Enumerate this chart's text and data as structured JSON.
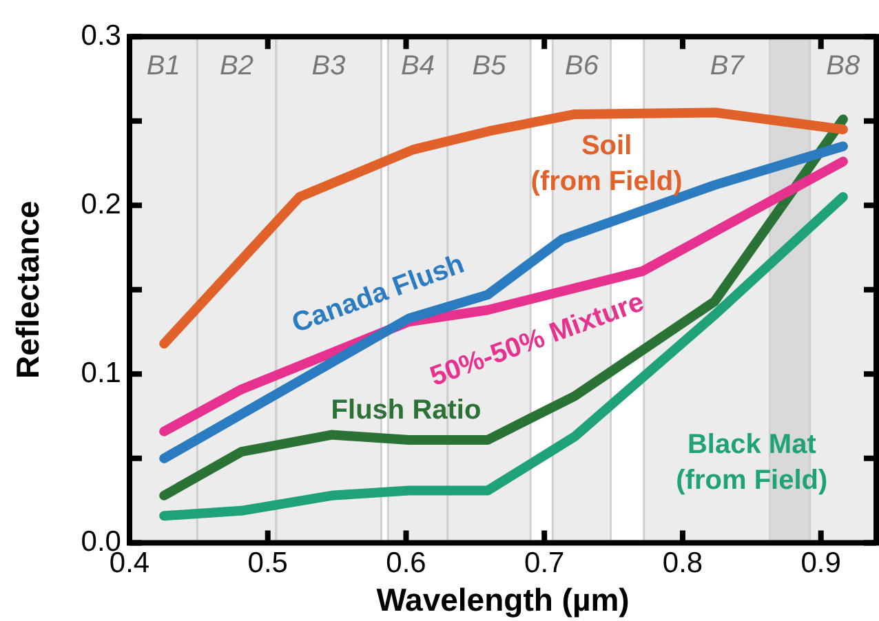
{
  "chart_data": {
    "type": "line",
    "xlabel": "Wavelength (µm)",
    "ylabel": "Reflectance",
    "xlim": [
      0.4,
      0.94
    ],
    "xticks": [
      0.4,
      0.5,
      0.6,
      0.7,
      0.8,
      0.9
    ],
    "ylim": [
      0,
      0.3
    ],
    "yticks": [
      {
        "value": 0,
        "label": "0.0"
      },
      {
        "value": 0.05,
        "label": null
      },
      0.1,
      {
        "value": 0.15,
        "label": null
      },
      0.2,
      {
        "value": 0.25,
        "label": null
      },
      0.3
    ],
    "grid": false,
    "legend": false,
    "marker": "none",
    "line_style": "solid",
    "series": [
      {
        "name": "Soil (from Field)",
        "color": "#e0622a",
        "x": [
          0.425,
          0.523,
          0.605,
          0.66,
          0.722,
          0.824,
          0.916
        ],
        "values": [
          0.118,
          0.205,
          0.233,
          0.244,
          0.254,
          0.255,
          0.245
        ]
      },
      {
        "name": "Canada Flush",
        "color": "#2b7bc0",
        "x": [
          0.425,
          0.602,
          0.659,
          0.713,
          0.823,
          0.916
        ],
        "values": [
          0.05,
          0.133,
          0.147,
          0.18,
          0.212,
          0.235
        ]
      },
      {
        "name": "50%-50% Mixture",
        "color": "#e6318f",
        "x": [
          0.425,
          0.481,
          0.602,
          0.659,
          0.771,
          0.916
        ],
        "values": [
          0.066,
          0.091,
          0.131,
          0.138,
          0.161,
          0.226
        ]
      },
      {
        "name": "Flush Ratio",
        "color": "#2a7235",
        "x": [
          0.425,
          0.481,
          0.546,
          0.602,
          0.659,
          0.722,
          0.823,
          0.916
        ],
        "values": [
          0.028,
          0.054,
          0.064,
          0.061,
          0.061,
          0.087,
          0.143,
          0.251
        ]
      },
      {
        "name": "Black Mat (from Field)",
        "color": "#1fa27a",
        "x": [
          0.425,
          0.481,
          0.546,
          0.602,
          0.659,
          0.722,
          0.823,
          0.916
        ],
        "values": [
          0.016,
          0.019,
          0.028,
          0.031,
          0.031,
          0.063,
          0.135,
          0.205
        ]
      }
    ],
    "bands": [
      {
        "axis": "x",
        "from": 0.4,
        "to": 0.449,
        "label": "B1",
        "color": "#ececec"
      },
      {
        "axis": "x",
        "from": 0.449,
        "to": 0.506,
        "label": "B2",
        "color": "#ececec"
      },
      {
        "axis": "x",
        "from": 0.506,
        "to": 0.582,
        "label": "B3",
        "color": "#ececec"
      },
      {
        "axis": "x",
        "from": 0.587,
        "to": 0.63,
        "label": "B4",
        "color": "#ececec"
      },
      {
        "axis": "x",
        "from": 0.63,
        "to": 0.69,
        "label": "B5",
        "color": "#ececec"
      },
      {
        "axis": "x",
        "from": 0.706,
        "to": 0.748,
        "label": "B6",
        "color": "#ececec"
      },
      {
        "axis": "x",
        "from": 0.772,
        "to": 0.892,
        "label": "B7",
        "color": "#ececec"
      },
      {
        "axis": "x",
        "from": 0.892,
        "to": 0.94,
        "label": "B8",
        "color": "#ececec"
      },
      {
        "axis": "x",
        "from": 0.863,
        "to": 0.892,
        "color": "#d9d9d9"
      }
    ]
  }
}
